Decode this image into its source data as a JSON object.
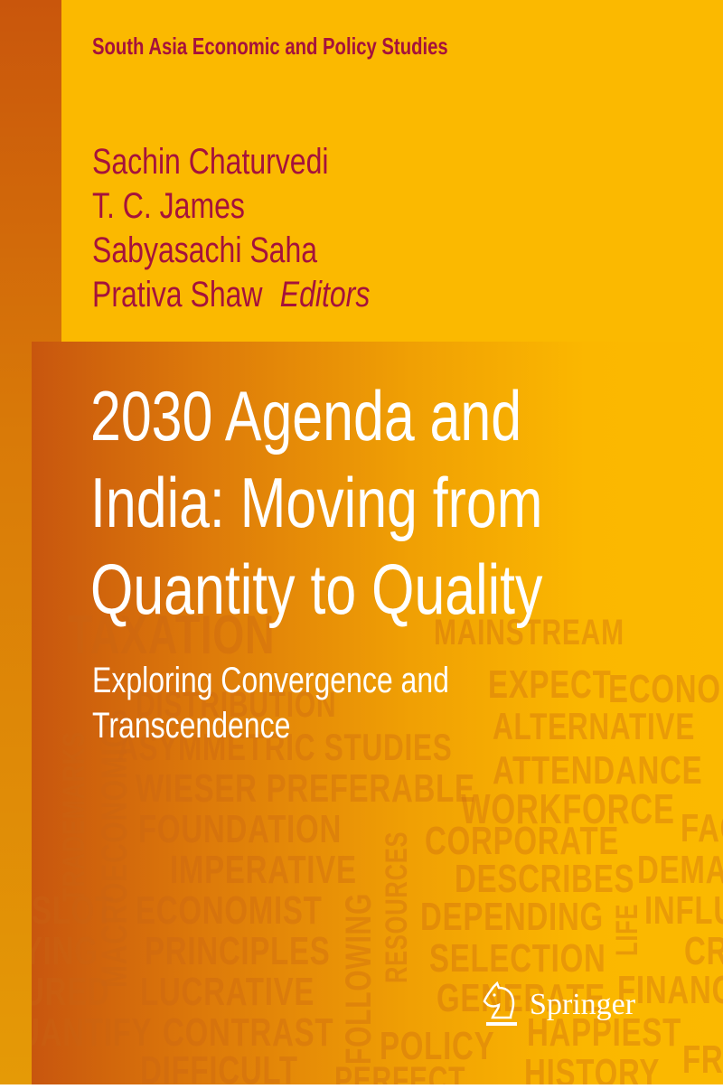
{
  "series_title": "South Asia Economic and Policy Studies",
  "editors": [
    "Sachin Chaturvedi",
    "T. C. James",
    "Sabyasachi Saha",
    "Prativa Shaw"
  ],
  "editors_label": "Editors",
  "title_lines": [
    "2030 Agenda and",
    "India: Moving from",
    "Quantity to Quality"
  ],
  "subtitle_lines": [
    "Exploring Convergence and",
    "Transcendence"
  ],
  "publisher": "Springer",
  "publisher_icon": "knight-chess-horse-icon",
  "background_words": [
    "MAINSTREAM",
    "EXPECT",
    "ECONOM",
    "DISTRIBUTION",
    "ALTERNATIVE",
    "ASYMMETRIC STUDIES",
    "ATTENDANCE",
    "WIESER PREFERABLE",
    "WORKFORCE",
    "FOUNDATION",
    "CORPORATE",
    "FACI",
    "IMPERATIVE",
    "DESCRIBES",
    "DEMA",
    "ECONOMIST",
    "DEPENDING",
    "INFLU",
    "PRINCIPLES",
    "SELECTION",
    "CRIT",
    "LUCRATIVE",
    "GENERATE",
    "FINANC",
    "CONTRAST",
    "POLICY",
    "HAPPIEST",
    "DIFFICULT",
    "PERFECT",
    "HISTORY",
    "FRE",
    "MACROECONOMICS",
    "FOLLOWING",
    "RESOURCES",
    "TRADEMARKS",
    "LIFE",
    "SLOT",
    "YING",
    "URED",
    "UANTIFY",
    "TAXATION"
  ],
  "colors": {
    "background": "#fbb900",
    "accent_text": "#a5123c",
    "title_text": "#ffffff",
    "spine": "#c9560c"
  }
}
